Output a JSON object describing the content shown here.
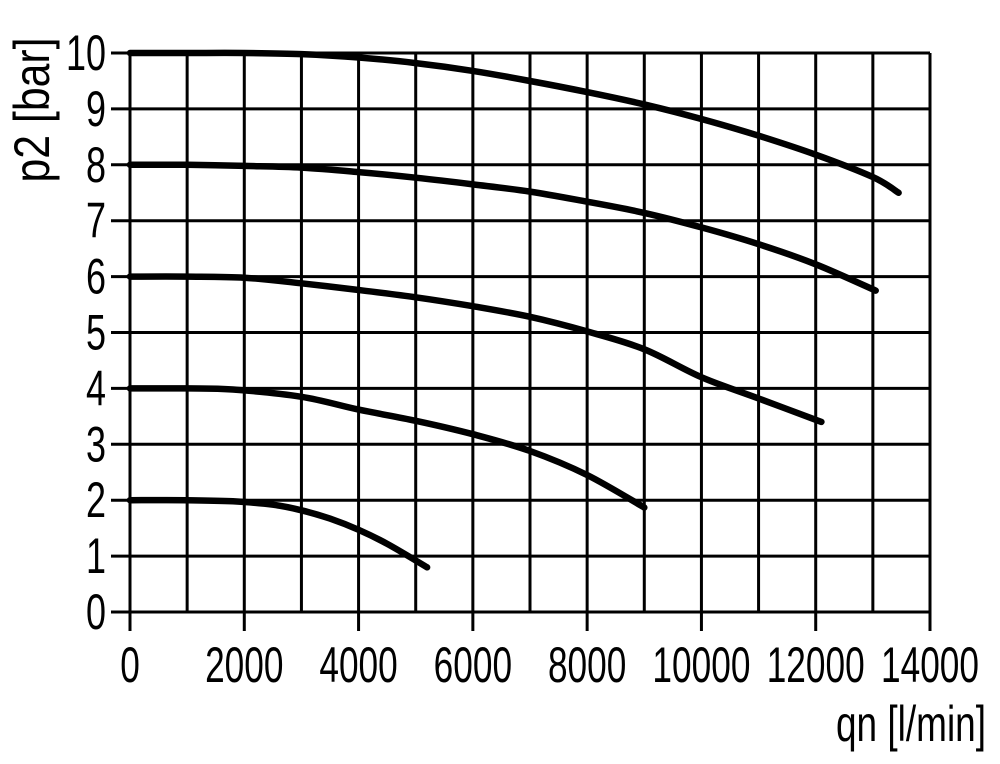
{
  "chart_data": {
    "type": "line",
    "title": "",
    "xlabel": "qn [l/min]",
    "ylabel": "p2 [bar]",
    "xlim": [
      0,
      14000
    ],
    "ylim": [
      0,
      10
    ],
    "x_grid_step": 1000,
    "y_grid_step": 1,
    "x_ticks": [
      0,
      2000,
      4000,
      6000,
      8000,
      10000,
      12000,
      14000
    ],
    "y_ticks": [
      0,
      1,
      2,
      3,
      4,
      5,
      6,
      7,
      8,
      9,
      10
    ],
    "grid": true,
    "legend_position": "none",
    "line_color": "#000000",
    "background_color": "#ffffff",
    "series": [
      {
        "p2_start": 10,
        "points": [
          [
            0,
            10
          ],
          [
            1000,
            10
          ],
          [
            2000,
            10
          ],
          [
            3000,
            9.98
          ],
          [
            4000,
            9.92
          ],
          [
            5000,
            9.82
          ],
          [
            6000,
            9.68
          ],
          [
            7000,
            9.5
          ],
          [
            8000,
            9.3
          ],
          [
            9000,
            9.08
          ],
          [
            10000,
            8.82
          ],
          [
            11000,
            8.52
          ],
          [
            12000,
            8.18
          ],
          [
            13000,
            7.78
          ],
          [
            13450,
            7.5
          ]
        ]
      },
      {
        "p2_start": 8,
        "points": [
          [
            0,
            8
          ],
          [
            1000,
            8
          ],
          [
            2000,
            7.98
          ],
          [
            3000,
            7.95
          ],
          [
            4000,
            7.87
          ],
          [
            5000,
            7.77
          ],
          [
            6000,
            7.65
          ],
          [
            7000,
            7.52
          ],
          [
            8000,
            7.34
          ],
          [
            9000,
            7.14
          ],
          [
            10000,
            6.88
          ],
          [
            11000,
            6.58
          ],
          [
            12000,
            6.22
          ],
          [
            13050,
            5.75
          ]
        ]
      },
      {
        "p2_start": 6,
        "points": [
          [
            0,
            6
          ],
          [
            1000,
            6
          ],
          [
            2000,
            5.98
          ],
          [
            3000,
            5.88
          ],
          [
            4000,
            5.76
          ],
          [
            5000,
            5.63
          ],
          [
            6000,
            5.47
          ],
          [
            7000,
            5.28
          ],
          [
            8000,
            5.02
          ],
          [
            9000,
            4.7
          ],
          [
            10000,
            4.2
          ],
          [
            11000,
            3.82
          ],
          [
            12100,
            3.4
          ]
        ]
      },
      {
        "p2_start": 4,
        "points": [
          [
            0,
            4
          ],
          [
            1000,
            4
          ],
          [
            1800,
            3.98
          ],
          [
            3000,
            3.85
          ],
          [
            4000,
            3.62
          ],
          [
            5000,
            3.42
          ],
          [
            6000,
            3.18
          ],
          [
            7000,
            2.88
          ],
          [
            8000,
            2.45
          ],
          [
            9000,
            1.87
          ]
        ]
      },
      {
        "p2_start": 2,
        "points": [
          [
            0,
            2
          ],
          [
            1000,
            2
          ],
          [
            1800,
            1.98
          ],
          [
            2500,
            1.92
          ],
          [
            3000,
            1.82
          ],
          [
            3500,
            1.67
          ],
          [
            4000,
            1.47
          ],
          [
            4500,
            1.22
          ],
          [
            5200,
            0.8
          ]
        ]
      }
    ]
  }
}
